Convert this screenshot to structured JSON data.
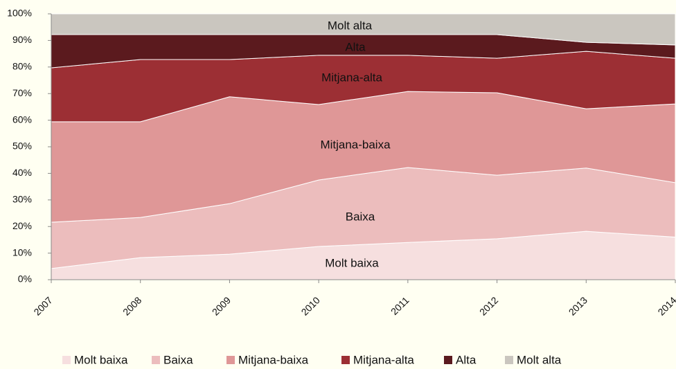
{
  "chart_data": {
    "type": "stacked-area",
    "categories": [
      "2007",
      "2008",
      "2009",
      "2010",
      "2011",
      "2012",
      "2013",
      "2014"
    ],
    "series": [
      {
        "name": "Molt baixa",
        "color": "#f6dfdf",
        "values": [
          4.2,
          8.3,
          9.6,
          12.5,
          14.0,
          15.4,
          18.2,
          16.0
        ]
      },
      {
        "name": "Baixa",
        "color": "#ecbdbd",
        "values": [
          17.4,
          15.1,
          19.0,
          25.0,
          28.2,
          23.9,
          23.8,
          20.5
        ]
      },
      {
        "name": "Mitjana-baixa",
        "color": "#df9797",
        "values": [
          37.8,
          36.0,
          40.2,
          28.4,
          28.6,
          31.0,
          22.3,
          29.6
        ]
      },
      {
        "name": "Mitjana-alta",
        "color": "#9c2f34",
        "values": [
          20.3,
          23.4,
          14.0,
          18.5,
          13.6,
          13.0,
          21.6,
          17.2
        ]
      },
      {
        "name": "Alta",
        "color": "#5b1a1e",
        "values": [
          12.5,
          9.4,
          9.4,
          7.8,
          7.8,
          8.9,
          3.4,
          5.0
        ]
      },
      {
        "name": "Molt alta",
        "color": "#cac6bf",
        "values": [
          7.8,
          7.8,
          7.8,
          7.8,
          7.8,
          7.8,
          10.7,
          11.7
        ]
      }
    ],
    "ylim": [
      0,
      100
    ],
    "yticks": [
      {
        "value": 0,
        "label": "0%"
      },
      {
        "value": 10,
        "label": "10%"
      },
      {
        "value": 20,
        "label": "20%"
      },
      {
        "value": 30,
        "label": "30%"
      },
      {
        "value": 40,
        "label": "40%"
      },
      {
        "value": 50,
        "label": "50%"
      },
      {
        "value": 60,
        "label": "60%"
      },
      {
        "value": 70,
        "label": "70%"
      },
      {
        "value": 80,
        "label": "80%"
      },
      {
        "value": 90,
        "label": "90%"
      },
      {
        "value": 100,
        "label": "100%"
      }
    ]
  }
}
